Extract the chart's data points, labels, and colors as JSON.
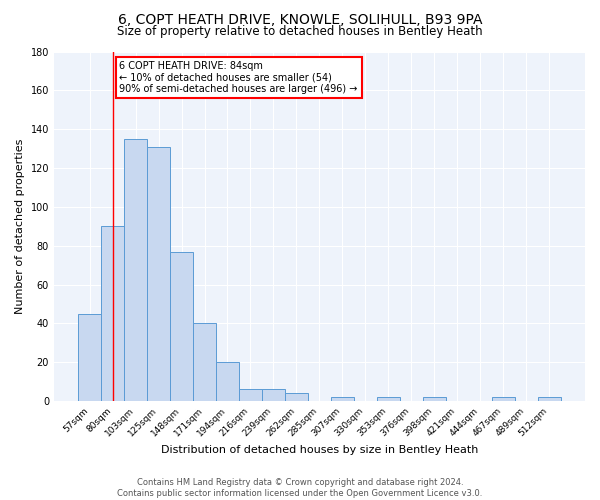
{
  "title": "6, COPT HEATH DRIVE, KNOWLE, SOLIHULL, B93 9PA",
  "subtitle": "Size of property relative to detached houses in Bentley Heath",
  "xlabel": "Distribution of detached houses by size in Bentley Heath",
  "ylabel": "Number of detached properties",
  "categories": [
    "57sqm",
    "80sqm",
    "103sqm",
    "125sqm",
    "148sqm",
    "171sqm",
    "194sqm",
    "216sqm",
    "239sqm",
    "262sqm",
    "285sqm",
    "307sqm",
    "330sqm",
    "353sqm",
    "376sqm",
    "398sqm",
    "421sqm",
    "444sqm",
    "467sqm",
    "489sqm",
    "512sqm"
  ],
  "values": [
    45,
    90,
    135,
    131,
    77,
    40,
    20,
    6,
    6,
    4,
    0,
    2,
    0,
    2,
    0,
    2,
    0,
    0,
    2,
    0,
    2
  ],
  "bar_color": "#c8d8f0",
  "bar_edge_color": "#5b9bd5",
  "red_line_x": 1,
  "annotation_text": "6 COPT HEATH DRIVE: 84sqm\n← 10% of detached houses are smaller (54)\n90% of semi-detached houses are larger (496) →",
  "annotation_box_color": "white",
  "annotation_box_edge": "red",
  "footer": "Contains HM Land Registry data © Crown copyright and database right 2024.\nContains public sector information licensed under the Open Government Licence v3.0.",
  "ylim": [
    0,
    180
  ],
  "background_color": "#eef3fb",
  "grid_color": "white",
  "title_fontsize": 10,
  "subtitle_fontsize": 8.5
}
